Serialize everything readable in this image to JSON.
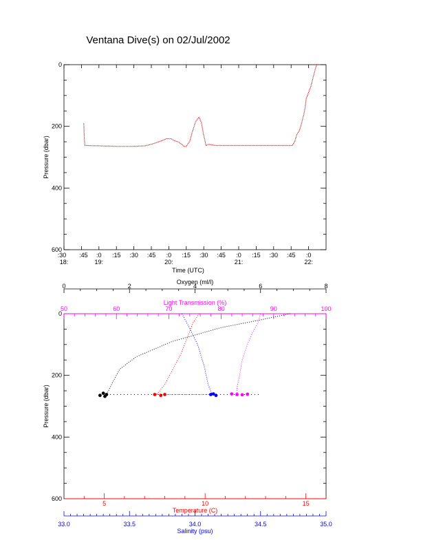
{
  "title": "Ventana Dive(s) on 02/Jul/2002",
  "colors": {
    "axis": "#000000",
    "depth_trace": "#cc0000",
    "oxygen": "#000000",
    "light_transmission": "#ff00ff",
    "temperature": "#ff0000",
    "salinity": "#0000ff"
  },
  "chart_data": [
    {
      "type": "line",
      "title": "Ventana Dive(s) on 02/Jul/2002",
      "xlabel": "Time (UTC)",
      "ylabel": "Pressure (dbar)",
      "ylim": [
        600,
        0
      ],
      "yticks": [
        "0",
        "200",
        "400",
        "600"
      ],
      "xlim_minutes_after_18_30": [
        0,
        225
      ],
      "xticks": [
        {
          "top": ":30",
          "bottom": "18:"
        },
        {
          "top": ":45",
          "bottom": ""
        },
        {
          "top": ":0",
          "bottom": "19:"
        },
        {
          "top": ":15",
          "bottom": ""
        },
        {
          "top": ":30",
          "bottom": ""
        },
        {
          "top": ":45",
          "bottom": ""
        },
        {
          "top": ":0",
          "bottom": "20:"
        },
        {
          "top": ":15",
          "bottom": ""
        },
        {
          "top": ":30",
          "bottom": ""
        },
        {
          "top": ":45",
          "bottom": ""
        },
        {
          "top": ":0",
          "bottom": "21:"
        },
        {
          "top": ":15",
          "bottom": ""
        },
        {
          "top": ":30",
          "bottom": ""
        },
        {
          "top": ":45",
          "bottom": ""
        },
        {
          "top": ":0",
          "bottom": "22:"
        }
      ],
      "grid": false,
      "series": [
        {
          "x_minutes": [
            17,
            17.5,
            18,
            20,
            25,
            30,
            35,
            40,
            45,
            50,
            55,
            60,
            65,
            70,
            75,
            80,
            85,
            88,
            92,
            95,
            98,
            101,
            103,
            105,
            108,
            110,
            113,
            116,
            118,
            120,
            122,
            124,
            127,
            130,
            132,
            135,
            140,
            150,
            160,
            170,
            180,
            190,
            196,
            198,
            200,
            202,
            204,
            206,
            207,
            208,
            210,
            212,
            214,
            216,
            217
          ],
          "y_dbar": [
            190,
            240,
            262,
            262,
            263,
            263,
            264,
            264,
            265,
            265,
            265,
            265,
            264,
            263,
            258,
            252,
            245,
            240,
            240,
            247,
            250,
            258,
            265,
            265,
            248,
            220,
            185,
            170,
            188,
            230,
            263,
            258,
            260,
            262,
            262,
            262,
            262,
            262,
            262,
            262,
            262,
            262,
            262,
            250,
            225,
            215,
            190,
            160,
            140,
            110,
            90,
            70,
            40,
            10,
            0
          ]
        }
      ]
    },
    {
      "type": "scatter",
      "ylabel": "Pressure (dbar)",
      "ylim": [
        600,
        0
      ],
      "yticks": [
        "0",
        "200",
        "400",
        "600"
      ],
      "axes": {
        "oxygen": {
          "label": "Oxygen (ml/l)",
          "range": [
            0,
            8
          ],
          "ticks": [
            "0",
            "2",
            "4",
            "6",
            "8"
          ]
        },
        "light_transmission": {
          "label": "Light Transmission (%)",
          "range": [
            50,
            100
          ],
          "ticks": [
            "50",
            "60",
            "70",
            "80",
            "90",
            "100"
          ]
        },
        "temperature": {
          "label": "Temperature (C)",
          "range": [
            3,
            16
          ],
          "ticks": [
            "5",
            "10",
            "15"
          ]
        },
        "salinity": {
          "label": "Salinity (psu)",
          "range": [
            33.0,
            35.0
          ],
          "ticks": [
            "33.0",
            "33.5",
            "34.0",
            "34.5",
            "35.0"
          ]
        }
      },
      "series": [
        {
          "axis": "oxygen",
          "profile": [
            [
              6.9,
              0
            ],
            [
              6.0,
              20
            ],
            [
              4.8,
              45
            ],
            [
              3.3,
              90
            ],
            [
              2.2,
              140
            ],
            [
              1.7,
              180
            ],
            [
              1.5,
              220
            ],
            [
              1.3,
              262
            ]
          ],
          "bottom": [
            [
              1.3,
              262
            ],
            [
              1.2,
              258
            ],
            [
              1.1,
              265
            ],
            [
              1.25,
              268
            ]
          ]
        },
        {
          "axis": "light_transmission",
          "profile": [
            [
              87.5,
              0
            ],
            [
              87,
              30
            ],
            [
              86,
              60
            ],
            [
              85,
              100
            ],
            [
              84,
              150
            ],
            [
              83.5,
              200
            ],
            [
              83,
              240
            ],
            [
              83,
              262
            ]
          ],
          "bottom": [
            [
              82,
              260
            ],
            [
              83,
              262
            ],
            [
              84,
              263
            ],
            [
              85,
              261
            ]
          ]
        },
        {
          "axis": "temperature",
          "profile": [
            [
              9.7,
              0
            ],
            [
              9.4,
              30
            ],
            [
              9.1,
              80
            ],
            [
              8.8,
              130
            ],
            [
              8.4,
              180
            ],
            [
              8.0,
              230
            ],
            [
              7.6,
              262
            ]
          ],
          "bottom": [
            [
              7.5,
              262
            ],
            [
              7.8,
              265
            ],
            [
              8.0,
              262
            ]
          ]
        },
        {
          "axis": "salinity",
          "profile": [
            [
              33.9,
              0
            ],
            [
              33.95,
              40
            ],
            [
              34.02,
              100
            ],
            [
              34.07,
              170
            ],
            [
              34.1,
              230
            ],
            [
              34.13,
              262
            ]
          ],
          "bottom": [
            [
              34.12,
              262
            ],
            [
              34.16,
              265
            ],
            [
              34.14,
              260
            ]
          ]
        }
      ],
      "horizontal_transects": [
        {
          "axis": "oxygen",
          "from": 1.3,
          "to": 6.0,
          "y_dbar": 262
        },
        {
          "axis": "temperature",
          "from": 7.6,
          "to": 10.5,
          "y_dbar": 262
        }
      ]
    }
  ]
}
